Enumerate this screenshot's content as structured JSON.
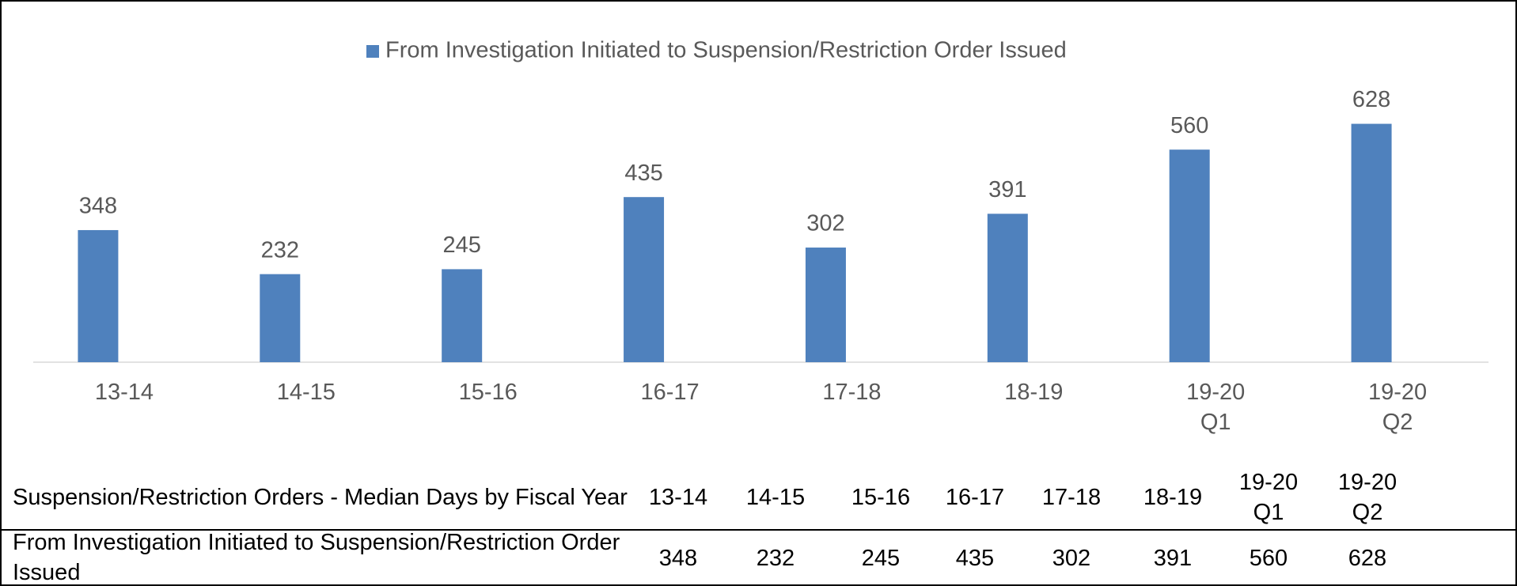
{
  "chart_data": {
    "type": "bar",
    "categories": [
      "13-14",
      "14-15",
      "15-16",
      "16-17",
      "17-18",
      "18-19",
      "19-20 Q1",
      "19-20 Q2"
    ],
    "series": [
      {
        "name": "From Investigation Initiated to Suspension/Restriction Order Issued",
        "color": "#4f81bd",
        "values": [
          348,
          232,
          245,
          435,
          302,
          391,
          560,
          628
        ]
      }
    ],
    "ylim": [
      0,
      700
    ],
    "grid": false,
    "legend": "top"
  },
  "table": {
    "title": "Suspension/Restriction Orders - Median Days by Fiscal Year"
  }
}
